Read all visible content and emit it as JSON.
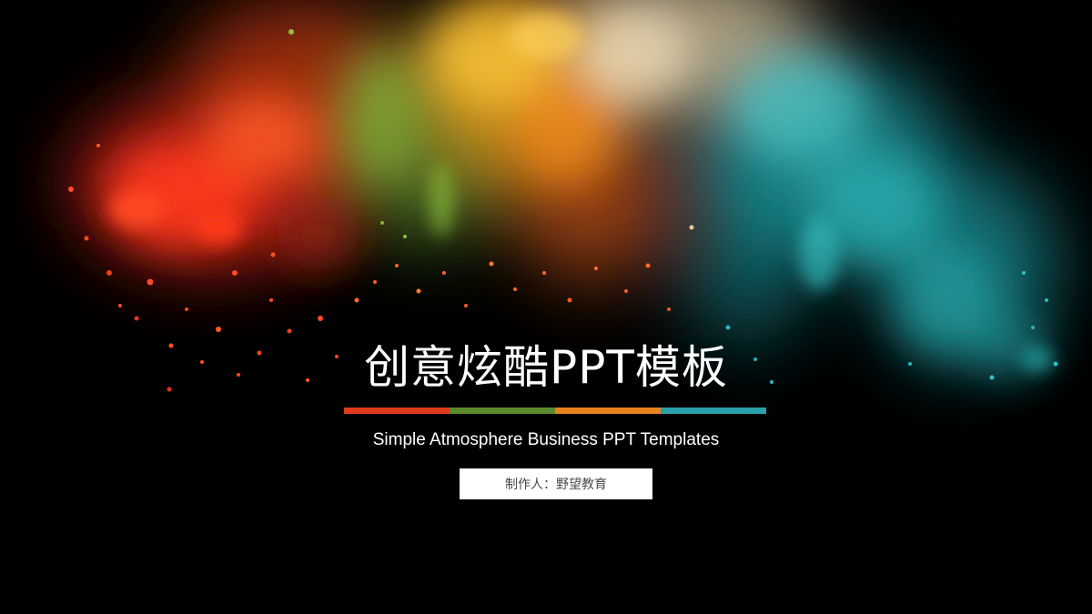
{
  "slide": {
    "title": "创意炫酷PPT模板",
    "subtitle": "Simple Atmosphere Business PPT Templates",
    "author": "制作人：野望教育"
  },
  "color_bar": [
    "#e03b1c",
    "#5c8a2e",
    "#e8841f",
    "#2aa0a8"
  ],
  "powder_colors": [
    "#e8341a",
    "#ff5a1f",
    "#6aa338",
    "#f0a020",
    "#d8c9a8",
    "#2bb5b8"
  ]
}
